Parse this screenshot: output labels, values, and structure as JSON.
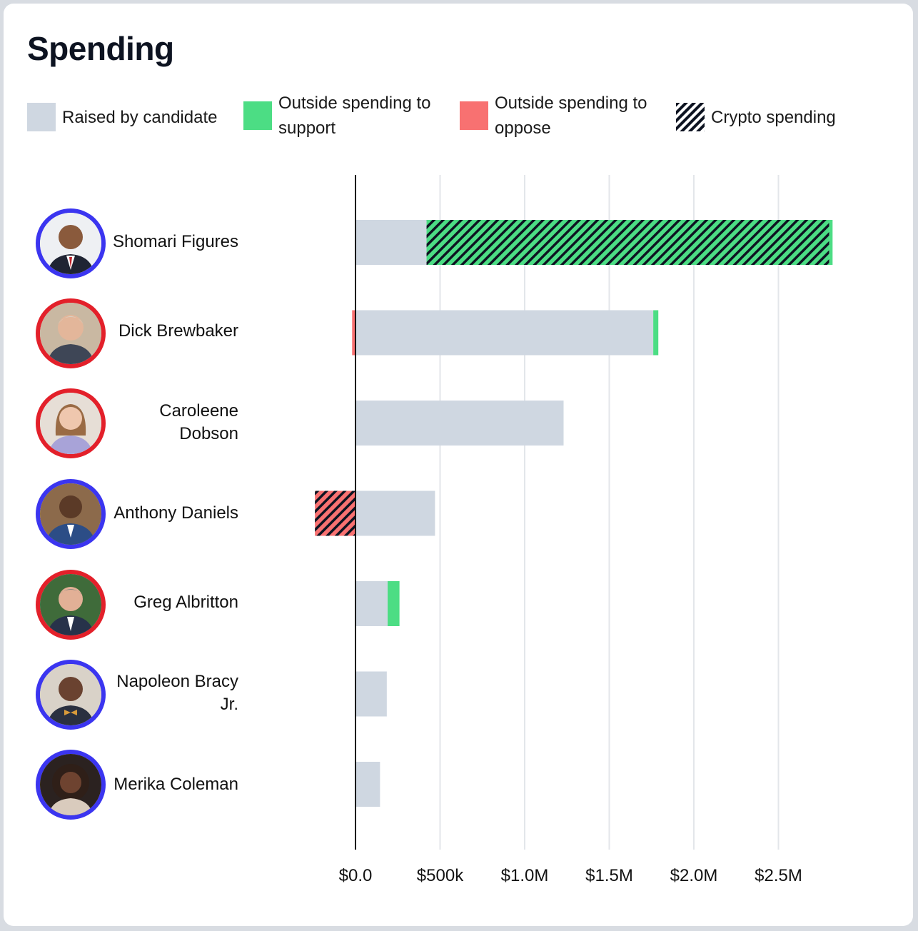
{
  "title": "Spending",
  "legend": [
    {
      "key": "raised",
      "label": "Raised by candidate",
      "color": "#cfd7e1"
    },
    {
      "key": "support",
      "label": "Outside spending to support",
      "color": "#4cdd84"
    },
    {
      "key": "oppose",
      "label": "Outside spending to oppose",
      "color": "#f87171"
    },
    {
      "key": "crypto",
      "label": "Crypto spending",
      "icon": "hatch-icon"
    }
  ],
  "colors": {
    "raised": "#cfd7e1",
    "support": "#4cdd84",
    "oppose": "#f87171",
    "democrat_ring": "#3b35f0",
    "republican_ring": "#e3202a"
  },
  "chart_data": {
    "type": "bar",
    "orientation": "horizontal",
    "stacked": true,
    "xlim": [
      -240000,
      2850000
    ],
    "x_ticks": [
      0,
      500000,
      1000000,
      1500000,
      2000000,
      2500000
    ],
    "x_tick_labels": [
      "$0.0",
      "$500k",
      "$1.0M",
      "$1.5M",
      "$2.0M",
      "$2.5M"
    ],
    "grid": true,
    "legend_position": "top",
    "categories": [
      "Shomari Figures",
      "Dick Brewbaker",
      "Caroleene Dobson",
      "Anthony Daniels",
      "Greg Albritton",
      "Napoleon Bracy Jr.",
      "Merika Coleman"
    ],
    "series": [
      {
        "name": "Raised by candidate",
        "values": [
          420000,
          1760000,
          1230000,
          470000,
          190000,
          185000,
          145000
        ]
      },
      {
        "name": "Outside spending to support",
        "values": [
          2400000,
          30000,
          0,
          0,
          70000,
          0,
          0
        ],
        "crypto_share": [
          2380000,
          0,
          0,
          0,
          0,
          0,
          0
        ]
      },
      {
        "name": "Outside spending to oppose",
        "values": [
          0,
          20000,
          0,
          240000,
          0,
          0,
          0
        ],
        "crypto_share": [
          0,
          0,
          0,
          240000,
          0,
          0,
          0
        ]
      }
    ],
    "party": [
      "democrat",
      "republican",
      "republican",
      "democrat",
      "republican",
      "democrat",
      "democrat"
    ]
  }
}
